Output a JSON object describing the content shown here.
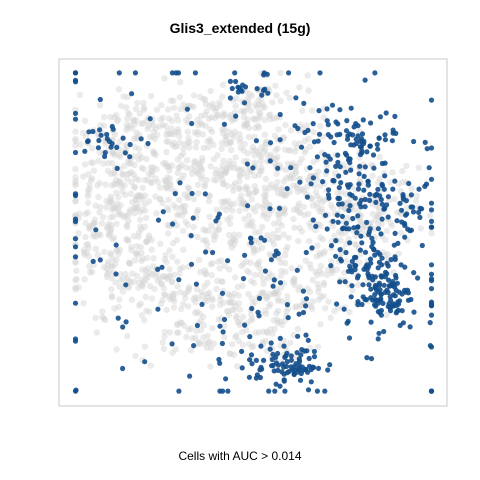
{
  "chart_data": {
    "type": "scatter",
    "title": "Glis3_extended (15g)",
    "xlabel": "Cells with AUC > 0.014",
    "ylabel": "",
    "grid": false,
    "legend": "none",
    "series": [
      {
        "name": "",
        "color": "#d3d3d3",
        "role": "background",
        "clusters": [
          [
            -0.62,
            0.62,
            0.18,
            0.1,
            90
          ],
          [
            -0.25,
            0.72,
            0.2,
            0.1,
            90
          ],
          [
            0.05,
            0.78,
            0.12,
            0.1,
            60
          ],
          [
            -0.78,
            0.35,
            0.14,
            0.14,
            80
          ],
          [
            -0.6,
            0.2,
            0.2,
            0.15,
            130
          ],
          [
            -0.78,
            -0.05,
            0.13,
            0.14,
            90
          ],
          [
            -0.55,
            -0.3,
            0.22,
            0.14,
            140
          ],
          [
            -0.3,
            -0.55,
            0.18,
            0.14,
            90
          ],
          [
            -0.22,
            0.4,
            0.2,
            0.14,
            120
          ],
          [
            0.15,
            0.45,
            0.14,
            0.12,
            80
          ],
          [
            -0.05,
            0.05,
            0.24,
            0.22,
            200
          ],
          [
            0.35,
            0.25,
            0.2,
            0.14,
            100
          ],
          [
            0.55,
            0.05,
            0.16,
            0.14,
            80
          ],
          [
            0.35,
            -0.25,
            0.2,
            0.14,
            90
          ],
          [
            0.05,
            -0.4,
            0.18,
            0.14,
            80
          ],
          [
            0.7,
            0.15,
            0.1,
            0.12,
            40
          ],
          [
            0.1,
            -0.7,
            0.1,
            0.08,
            30
          ]
        ]
      },
      {
        "name": "",
        "color": "#134f8c",
        "role": "highlighted",
        "clusters": [
          [
            0.18,
            -0.82,
            0.1,
            0.05,
            70
          ],
          [
            0.72,
            -0.38,
            0.07,
            0.1,
            80
          ],
          [
            0.68,
            -0.25,
            0.1,
            0.14,
            60
          ],
          [
            0.6,
            0.25,
            0.15,
            0.14,
            80
          ],
          [
            0.4,
            0.6,
            0.12,
            0.1,
            40
          ],
          [
            0.62,
            0.55,
            0.12,
            0.1,
            40
          ],
          [
            0.82,
            0.1,
            0.05,
            0.06,
            20
          ],
          [
            0.52,
            -0.05,
            0.08,
            0.08,
            20
          ],
          [
            -0.02,
            0.88,
            0.06,
            0.03,
            15
          ],
          [
            -0.8,
            0.55,
            0.1,
            0.06,
            25
          ],
          [
            0.0,
            0.0,
            0.7,
            0.7,
            160
          ],
          [
            0.0,
            -0.4,
            0.5,
            0.3,
            60
          ]
        ]
      }
    ],
    "xlim": [
      -1,
      1
    ],
    "ylim": [
      -1,
      1
    ],
    "plot_frame_color": "#c9c9c9"
  }
}
